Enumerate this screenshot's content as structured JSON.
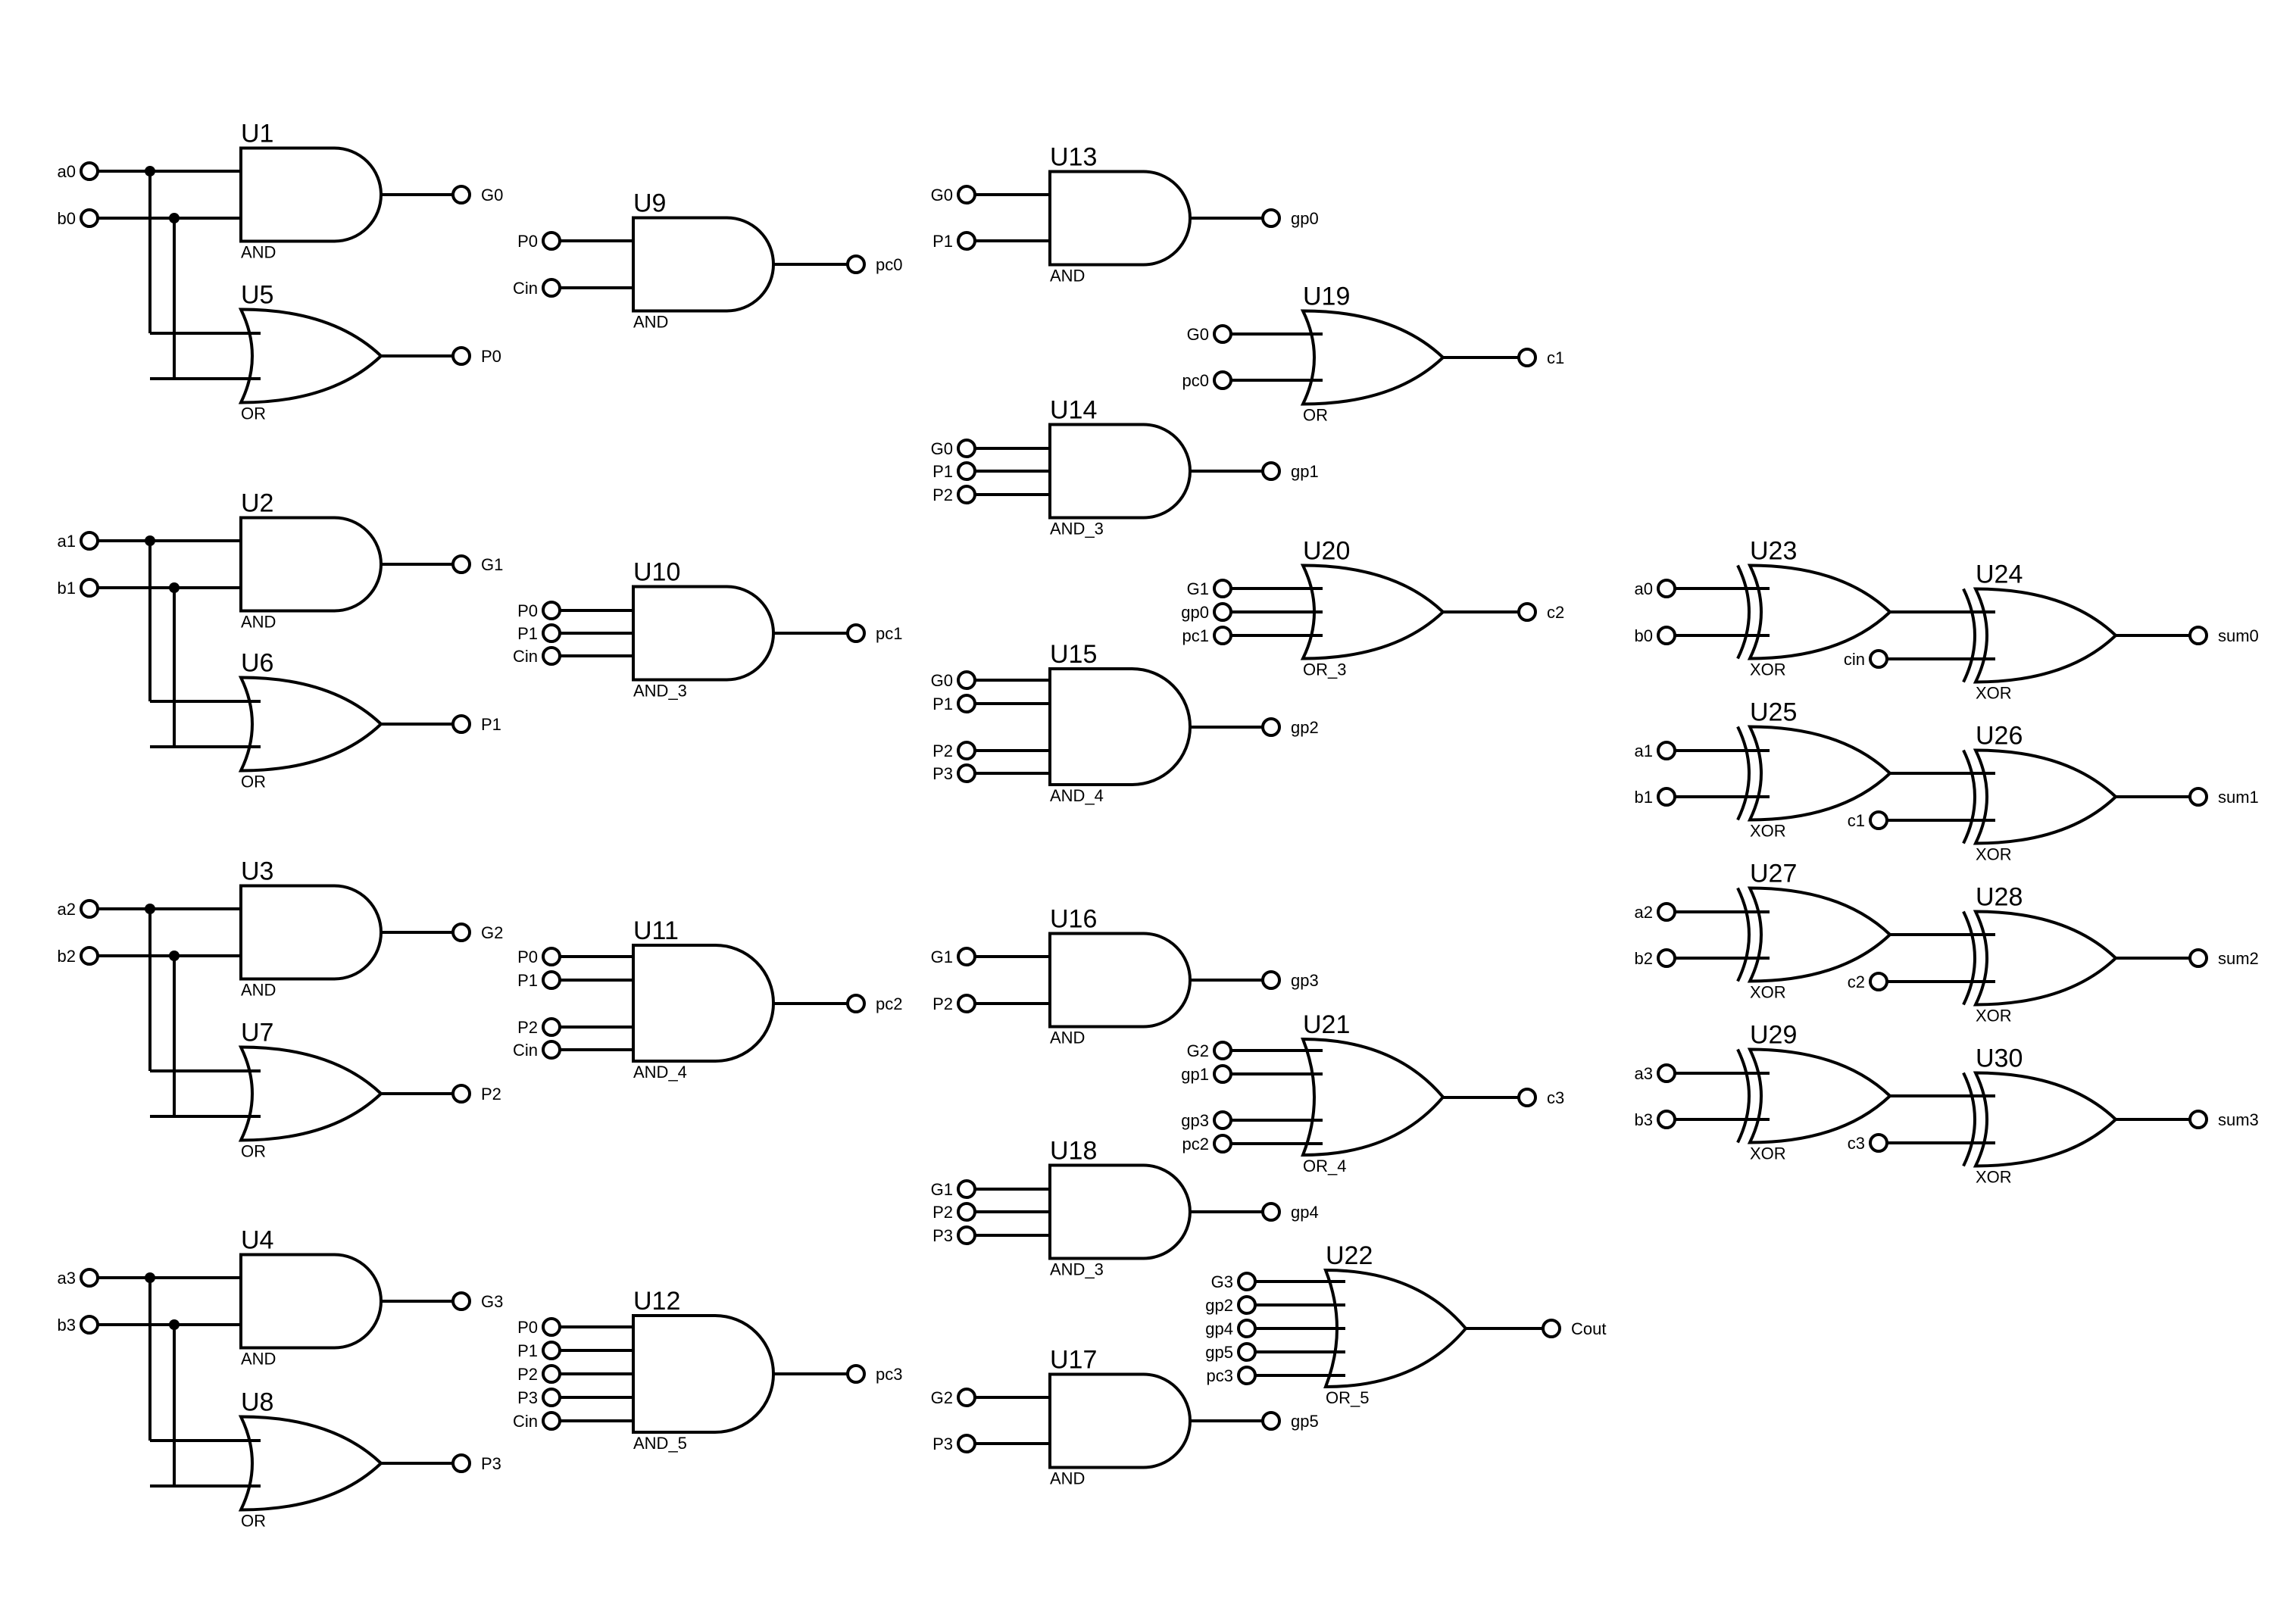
{
  "canvas": {
    "background": "#ffffff",
    "ink": "#000000"
  },
  "gates": [
    {
      "ref": "U1",
      "kind": "and",
      "type_label": "AND",
      "inputs": [
        "a0",
        "b0"
      ],
      "output": "G0"
    },
    {
      "ref": "U5",
      "kind": "or",
      "type_label": "OR",
      "inputs": [
        "a0",
        "b0"
      ],
      "output": "P0"
    },
    {
      "ref": "U2",
      "kind": "and",
      "type_label": "AND",
      "inputs": [
        "a1",
        "b1"
      ],
      "output": "G1"
    },
    {
      "ref": "U6",
      "kind": "or",
      "type_label": "OR",
      "inputs": [
        "a1",
        "b1"
      ],
      "output": "P1"
    },
    {
      "ref": "U3",
      "kind": "and",
      "type_label": "AND",
      "inputs": [
        "a2",
        "b2"
      ],
      "output": "G2"
    },
    {
      "ref": "U7",
      "kind": "or",
      "type_label": "OR",
      "inputs": [
        "a2",
        "b2"
      ],
      "output": "P2"
    },
    {
      "ref": "U4",
      "kind": "and",
      "type_label": "AND",
      "inputs": [
        "a3",
        "b3"
      ],
      "output": "G3"
    },
    {
      "ref": "U8",
      "kind": "or",
      "type_label": "OR",
      "inputs": [
        "a3",
        "b3"
      ],
      "output": "P3"
    },
    {
      "ref": "U9",
      "kind": "and",
      "type_label": "AND",
      "inputs": [
        "P0",
        "Cin"
      ],
      "output": "pc0"
    },
    {
      "ref": "U10",
      "kind": "and",
      "type_label": "AND_3",
      "inputs": [
        "P0",
        "P1",
        "Cin"
      ],
      "output": "pc1"
    },
    {
      "ref": "U11",
      "kind": "and",
      "type_label": "AND_4",
      "inputs": [
        "P0",
        "P1",
        "P2",
        "Cin"
      ],
      "output": "pc2"
    },
    {
      "ref": "U12",
      "kind": "and",
      "type_label": "AND_5",
      "inputs": [
        "P0",
        "P1",
        "P2",
        "P3",
        "Cin"
      ],
      "output": "pc3"
    },
    {
      "ref": "U13",
      "kind": "and",
      "type_label": "AND",
      "inputs": [
        "G0",
        "P1"
      ],
      "output": "gp0"
    },
    {
      "ref": "U14",
      "kind": "and",
      "type_label": "AND_3",
      "inputs": [
        "G0",
        "P1",
        "P2"
      ],
      "output": "gp1"
    },
    {
      "ref": "U15",
      "kind": "and",
      "type_label": "AND_4",
      "inputs": [
        "G0",
        "P1",
        "P2",
        "P3"
      ],
      "output": "gp2"
    },
    {
      "ref": "U16",
      "kind": "and",
      "type_label": "AND",
      "inputs": [
        "G1",
        "P2"
      ],
      "output": "gp3"
    },
    {
      "ref": "U18",
      "kind": "and",
      "type_label": "AND_3",
      "inputs": [
        "G1",
        "P2",
        "P3"
      ],
      "output": "gp4"
    },
    {
      "ref": "U17",
      "kind": "and",
      "type_label": "AND",
      "inputs": [
        "G2",
        "P3"
      ],
      "output": "gp5"
    },
    {
      "ref": "U19",
      "kind": "or",
      "type_label": "OR",
      "inputs": [
        "G0",
        "pc0"
      ],
      "output": "c1"
    },
    {
      "ref": "U20",
      "kind": "or",
      "type_label": "OR_3",
      "inputs": [
        "G1",
        "gp0",
        "pc1"
      ],
      "output": "c2"
    },
    {
      "ref": "U21",
      "kind": "or",
      "type_label": "OR_4",
      "inputs": [
        "G2",
        "gp1",
        "gp3",
        "pc2"
      ],
      "output": "c3"
    },
    {
      "ref": "U22",
      "kind": "or",
      "type_label": "OR_5",
      "inputs": [
        "G3",
        "gp2",
        "gp4",
        "gp5",
        "pc3"
      ],
      "output": "Cout"
    },
    {
      "ref": "U23",
      "kind": "xor",
      "type_label": "XOR",
      "inputs": [
        "a0",
        "b0"
      ],
      "output": ""
    },
    {
      "ref": "U24",
      "kind": "xor",
      "type_label": "XOR",
      "inputs": [
        "",
        "cin"
      ],
      "output": "sum0"
    },
    {
      "ref": "U25",
      "kind": "xor",
      "type_label": "XOR",
      "inputs": [
        "a1",
        "b1"
      ],
      "output": ""
    },
    {
      "ref": "U26",
      "kind": "xor",
      "type_label": "XOR",
      "inputs": [
        "",
        "c1"
      ],
      "output": "sum1"
    },
    {
      "ref": "U27",
      "kind": "xor",
      "type_label": "XOR",
      "inputs": [
        "a2",
        "b2"
      ],
      "output": ""
    },
    {
      "ref": "U28",
      "kind": "xor",
      "type_label": "XOR",
      "inputs": [
        "",
        "c2"
      ],
      "output": "sum2"
    },
    {
      "ref": "U29",
      "kind": "xor",
      "type_label": "XOR",
      "inputs": [
        "a3",
        "b3"
      ],
      "output": ""
    },
    {
      "ref": "U30",
      "kind": "xor",
      "type_label": "XOR",
      "inputs": [
        "",
        "c3"
      ],
      "output": "sum3"
    }
  ]
}
